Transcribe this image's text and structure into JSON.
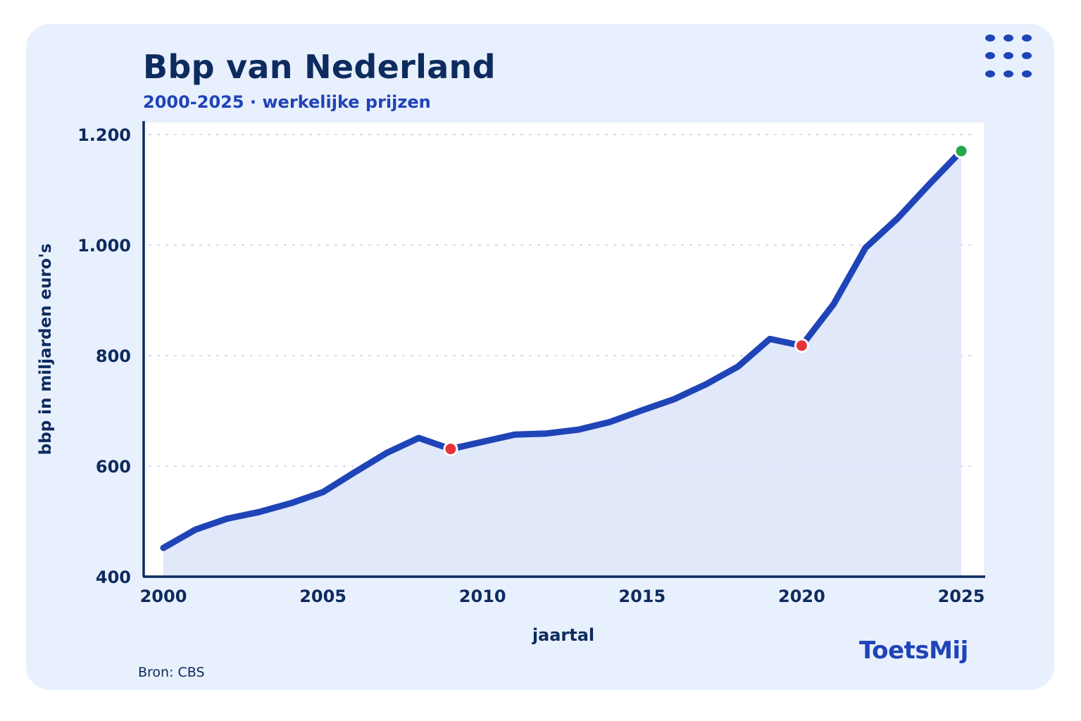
{
  "header": {
    "title": "Bbp van Nederland",
    "subtitle": "2000-2025 · werkelijke prijzen"
  },
  "footer": {
    "source": "Bron: CBS",
    "logo_text": "ToetsMij"
  },
  "icons": {
    "menu": "grid-dots-icon"
  },
  "colors": {
    "background": "#e9f0fd",
    "line": "#1f44b8",
    "area": "#dde6f9",
    "title": "#0d2b5e",
    "low_point": "#e8333a",
    "high_point": "#23a84d"
  },
  "chart_data": {
    "type": "line",
    "title": "Bbp van Nederland",
    "subtitle": "2000-2025 · werkelijke prijzen",
    "xlabel": "jaartal",
    "ylabel": "bbp in miljarden euro's",
    "xlim": [
      2000,
      2025
    ],
    "ylim": [
      400,
      1200
    ],
    "x_ticks": [
      "2000",
      "2005",
      "2010",
      "2015",
      "2020",
      "2025"
    ],
    "y_ticks": [
      "400",
      "600",
      "800",
      "1.000",
      "1.200"
    ],
    "grid": "horizontal dotted",
    "series": [
      {
        "values": [
          {
            "x": 2000,
            "y": 452
          },
          {
            "x": 2001,
            "y": 485
          },
          {
            "x": 2002,
            "y": 505
          },
          {
            "x": 2003,
            "y": 517
          },
          {
            "x": 2004,
            "y": 533
          },
          {
            "x": 2005,
            "y": 553
          },
          {
            "x": 2006,
            "y": 589
          },
          {
            "x": 2007,
            "y": 624
          },
          {
            "x": 2008,
            "y": 651
          },
          {
            "x": 2009,
            "y": 631
          },
          {
            "x": 2010,
            "y": 644
          },
          {
            "x": 2011,
            "y": 657
          },
          {
            "x": 2012,
            "y": 659
          },
          {
            "x": 2013,
            "y": 666
          },
          {
            "x": 2014,
            "y": 680
          },
          {
            "x": 2015,
            "y": 701
          },
          {
            "x": 2016,
            "y": 721
          },
          {
            "x": 2017,
            "y": 748
          },
          {
            "x": 2018,
            "y": 780
          },
          {
            "x": 2019,
            "y": 830
          },
          {
            "x": 2020,
            "y": 818
          },
          {
            "x": 2021,
            "y": 893
          },
          {
            "x": 2022,
            "y": 995
          },
          {
            "x": 2023,
            "y": 1048
          },
          {
            "x": 2024,
            "y": 1110
          },
          {
            "x": 2025,
            "y": 1170
          }
        ]
      }
    ],
    "highlights": [
      {
        "x": 2009,
        "y": 631,
        "kind": "low"
      },
      {
        "x": 2020,
        "y": 818,
        "kind": "low"
      },
      {
        "x": 2025,
        "y": 1170,
        "kind": "high"
      }
    ]
  }
}
